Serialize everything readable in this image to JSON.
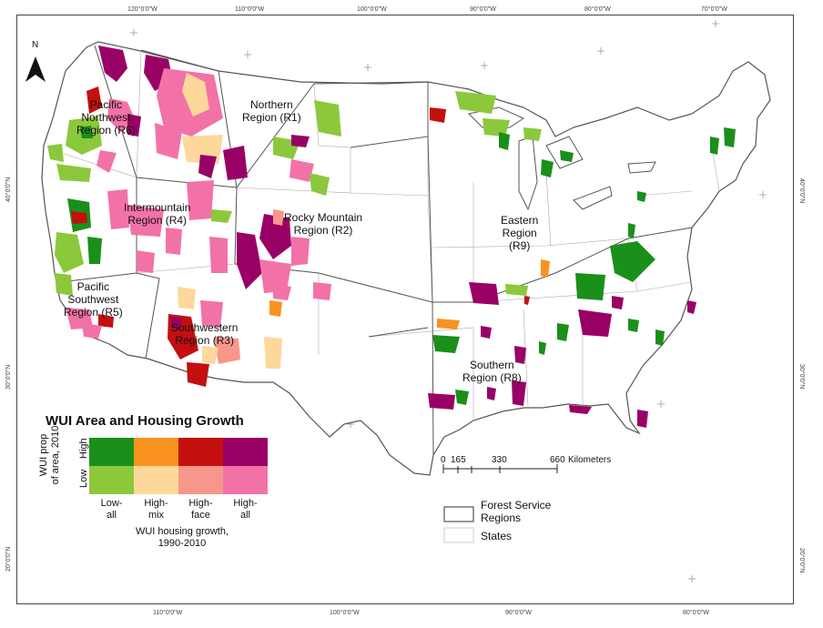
{
  "north_arrow": "N",
  "ticks": {
    "top": [
      "120°0'0\"W",
      "110°0'0\"W",
      "100°0'0\"W",
      "90°0'0\"W",
      "80°0'0\"W",
      "70°0'0\"W"
    ],
    "bottom": [
      "110°0'0\"W",
      "100°0'0\"W",
      "90°0'0\"W",
      "80°0'0\"W"
    ],
    "left": [
      "40°0'0\"N",
      "30°0'0\"N",
      "20°0'0\"N"
    ],
    "right": [
      "40°0'0\"N",
      "30°0'0\"N",
      "20°0'0\"N"
    ]
  },
  "regions": {
    "r6": [
      "Pacific",
      "Northwest",
      "Region (R6)"
    ],
    "r1": [
      "Northern",
      "Region (R1)"
    ],
    "r4": [
      "Intermountain",
      "Region (R4)"
    ],
    "r2": [
      "Rocky Mountain",
      "Region (R2)"
    ],
    "r9": [
      "Eastern",
      "Region",
      "(R9)"
    ],
    "r5": [
      "Pacific",
      "Southwest",
      "Region (R5)"
    ],
    "r3": [
      "Southwestern",
      "Region (R3)"
    ],
    "r8": [
      "Southern",
      "Region (R8)"
    ]
  },
  "legend": {
    "title": "WUI Area and Housing Growth",
    "y_axis_label": [
      "WUI prop",
      "of area, 2010"
    ],
    "high": "High",
    "low": "Low",
    "columns": [
      {
        "label": [
          "Low-",
          "all"
        ],
        "high_color": "#1a8f1a",
        "low_color": "#8cc83c"
      },
      {
        "label": [
          "High-",
          "mix"
        ],
        "high_color": "#f7931e",
        "low_color": "#fdd89a"
      },
      {
        "label": [
          "High-",
          "face"
        ],
        "high_color": "#c40f0f",
        "low_color": "#f7968a"
      },
      {
        "label": [
          "High-",
          "all"
        ],
        "high_color": "#990066",
        "low_color": "#f272a8"
      }
    ],
    "x_axis_label": [
      "WUI housing growth,",
      "1990-2010"
    ]
  },
  "scale_bar": {
    "ticks": [
      "0",
      "165",
      "330",
      "660"
    ],
    "unit": "Kilometers"
  },
  "boundary_legend": {
    "regions": [
      "Forest Service",
      "Regions"
    ],
    "states": "States"
  },
  "colors": {
    "green_dark": "#1a8f1a",
    "green_light": "#8cc83c",
    "orange_dark": "#f7931e",
    "orange_light": "#fdd89a",
    "red_dark": "#c40f0f",
    "red_light": "#f7968a",
    "purple_dark": "#990066",
    "purple_light": "#f272a8"
  }
}
